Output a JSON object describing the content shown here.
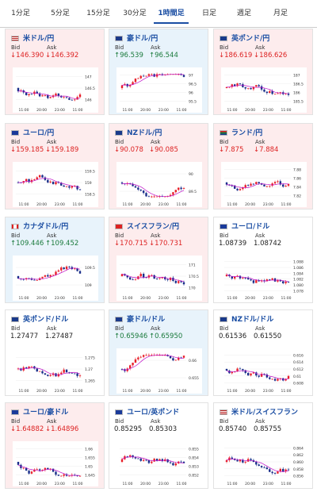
{
  "tabs": [
    {
      "label": "1分足"
    },
    {
      "label": "5分足"
    },
    {
      "label": "15分足"
    },
    {
      "label": "30分足"
    },
    {
      "label": "1時間足",
      "active": true
    },
    {
      "label": "日足"
    },
    {
      "label": "週足"
    },
    {
      "label": "月足"
    }
  ],
  "labels": {
    "bid": "Bid",
    "ask": "Ask"
  },
  "colors": {
    "up": "#1a7a3c",
    "down": "#d22",
    "flat": "#222",
    "candle_up": "#e8202a",
    "candle_down": "#1a2e8a",
    "ma": "#c010c8"
  },
  "xticks": [
    "11:00",
    "20:00",
    "23:00",
    "11:00"
  ],
  "cards": [
    {
      "pair": "米ドル/円",
      "dir": "down",
      "bid": "146.390",
      "ask": "146.392",
      "flag": "us",
      "yticks": [
        "147",
        "146.5",
        "146"
      ]
    },
    {
      "pair": "豪ドル/円",
      "dir": "up",
      "bid": "96.539",
      "ask": "96.544",
      "flag": "au",
      "yticks": [
        "97",
        "96.5",
        "96",
        "95.5"
      ]
    },
    {
      "pair": "英ポンド/円",
      "dir": "down",
      "bid": "186.619",
      "ask": "186.626",
      "flag": "gb",
      "yticks": [
        "187",
        "186.5",
        "186",
        "185.5"
      ]
    },
    {
      "pair": "ユーロ/円",
      "dir": "down",
      "bid": "159.185",
      "ask": "159.189",
      "flag": "eu",
      "yticks": [
        "159.5",
        "159",
        "158.5"
      ]
    },
    {
      "pair": "NZドル/円",
      "dir": "down",
      "bid": "90.078",
      "ask": "90.085",
      "flag": "nz",
      "yticks": [
        "90",
        "89.5"
      ]
    },
    {
      "pair": "ランド/円",
      "dir": "down",
      "bid": "7.875",
      "ask": "7.884",
      "flag": "za",
      "yticks": [
        "7.88",
        "7.86",
        "7.84",
        "7.82"
      ]
    },
    {
      "pair": "カナダドル/円",
      "dir": "up",
      "bid": "109.446",
      "ask": "109.452",
      "flag": "ca",
      "yticks": [
        "109.5",
        "109"
      ]
    },
    {
      "pair": "スイスフラン/円",
      "dir": "down",
      "bid": "170.715",
      "ask": "170.731",
      "flag": "ch",
      "yticks": [
        "171",
        "170.5",
        "170"
      ]
    },
    {
      "pair": "ユーロ/ドル",
      "dir": "flat",
      "bid": "1.08739",
      "ask": "1.08742",
      "flag": "eu",
      "yticks": [
        "1.088",
        "1.086",
        "1.084",
        "1.082",
        "1.080",
        "1.078"
      ]
    },
    {
      "pair": "英ポンド/ドル",
      "dir": "flat",
      "bid": "1.27477",
      "ask": "1.27487",
      "flag": "gb",
      "yticks": [
        "1.275",
        "1.27",
        "1.265"
      ]
    },
    {
      "pair": "豪ドル/ドル",
      "dir": "up",
      "bid": "0.65946",
      "ask": "0.65950",
      "flag": "au",
      "yticks": [
        "0.66",
        "0.655"
      ]
    },
    {
      "pair": "NZドル/ドル",
      "dir": "flat",
      "bid": "0.61536",
      "ask": "0.61550",
      "flag": "nz",
      "yticks": [
        "0.616",
        "0.614",
        "0.612",
        "0.61",
        "0.608"
      ]
    },
    {
      "pair": "ユーロ/豪ドル",
      "dir": "down",
      "bid": "1.64882",
      "ask": "1.64896",
      "flag": "eu",
      "yticks": [
        "1.66",
        "1.655",
        "1.65",
        "1.645"
      ]
    },
    {
      "pair": "ユーロ/英ポンド",
      "dir": "flat",
      "bid": "0.85295",
      "ask": "0.85303",
      "flag": "eu",
      "yticks": [
        "0.855",
        "0.854",
        "0.853",
        "0.852"
      ]
    },
    {
      "pair": "米ドル/スイスフラン",
      "dir": "flat",
      "bid": "0.85740",
      "ask": "0.85755",
      "flag": "us",
      "yticks": [
        "0.864",
        "0.862",
        "0.860",
        "0.858",
        "0.856"
      ]
    }
  ]
}
